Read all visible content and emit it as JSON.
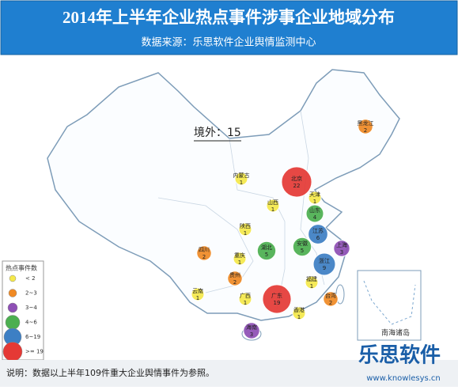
{
  "header": {
    "title": "2014年上半年企业热点事件涉事企业地域分布",
    "subtitle": "数据来源：乐思软件企业舆情监测中心"
  },
  "overseas": {
    "label": "境外：",
    "value": 15
  },
  "legend": {
    "title": "热点事件数",
    "items": [
      {
        "label": "< 2",
        "color": "#f5e94a"
      },
      {
        "label": "2~3",
        "color": "#f08a24"
      },
      {
        "label": "3~4",
        "color": "#8e4fb5"
      },
      {
        "label": "4~6",
        "color": "#4caf50"
      },
      {
        "label": "6~19",
        "color": "#3d7fc4"
      },
      {
        "label": ">= 19",
        "color": "#e53935"
      }
    ]
  },
  "regions": [
    {
      "name": "黑龙江",
      "value": 2,
      "color": "#f08a24"
    },
    {
      "name": "内蒙古",
      "value": 1,
      "color": "#f5e94a"
    },
    {
      "name": "北京",
      "value": 22,
      "color": "#e53935"
    },
    {
      "name": "天津",
      "value": 1,
      "color": "#f5e94a"
    },
    {
      "name": "山西",
      "value": 1,
      "color": "#f5e94a"
    },
    {
      "name": "山东",
      "value": 4,
      "color": "#4caf50"
    },
    {
      "name": "江苏",
      "value": 6,
      "color": "#3d7fc4"
    },
    {
      "name": "安徽",
      "value": 5,
      "color": "#4caf50"
    },
    {
      "name": "上海",
      "value": 3,
      "color": "#8e4fb5"
    },
    {
      "name": "浙江",
      "value": 9,
      "color": "#3d7fc4"
    },
    {
      "name": "湖北",
      "value": 5,
      "color": "#4caf50"
    },
    {
      "name": "陕西",
      "value": 1,
      "color": "#f5e94a"
    },
    {
      "name": "四川",
      "value": 2,
      "color": "#f08a24"
    },
    {
      "name": "重庆",
      "value": 1,
      "color": "#f5e94a"
    },
    {
      "name": "贵州",
      "value": 2,
      "color": "#f08a24"
    },
    {
      "name": "云南",
      "value": 1,
      "color": "#f5e94a"
    },
    {
      "name": "广西",
      "value": 1,
      "color": "#f5e94a"
    },
    {
      "name": "广东",
      "value": 19,
      "color": "#e53935"
    },
    {
      "name": "福建",
      "value": 1,
      "color": "#f5e94a"
    },
    {
      "name": "台湾",
      "value": 2,
      "color": "#f08a24"
    },
    {
      "name": "香港",
      "value": 1,
      "color": "#f5e94a"
    },
    {
      "name": "海南",
      "value": 3,
      "color": "#8e4fb5"
    }
  ],
  "inset": {
    "label": "南海诸岛"
  },
  "footer": {
    "note": "说明：数据以上半年109件重大企业舆情事件为参照。",
    "logo": "乐思软件",
    "url": "www.knowlesys.cn"
  }
}
